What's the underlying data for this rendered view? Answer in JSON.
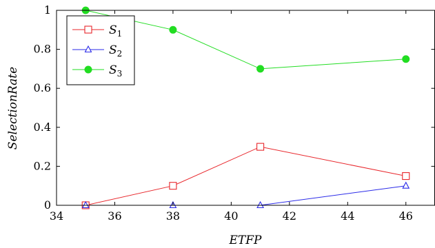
{
  "chart_data": {
    "type": "line",
    "title": "",
    "xlabel": "ETFP",
    "ylabel": "SelectionRate",
    "xlim": [
      34,
      47
    ],
    "ylim": [
      0,
      1
    ],
    "xticks": [
      34,
      36,
      38,
      40,
      42,
      44,
      46
    ],
    "yticks": [
      0,
      0.2,
      0.4,
      0.6,
      0.8,
      1
    ],
    "grid": false,
    "legend": "top-left",
    "series": [
      {
        "name": "S1",
        "legend_main": "S",
        "legend_sub": "1",
        "color": "#e8252a",
        "marker": "square-open",
        "x": [
          35,
          38,
          41,
          46
        ],
        "y": [
          0,
          0.1,
          0.3,
          0.15
        ]
      },
      {
        "name": "S2",
        "legend_main": "S",
        "legend_sub": "2",
        "color": "#2a2ae8",
        "marker": "triangle-open",
        "x": [
          35,
          38,
          41,
          46
        ],
        "y": [
          0,
          0,
          0,
          0.1
        ]
      },
      {
        "name": "S3",
        "legend_main": "S",
        "legend_sub": "3",
        "color": "#22dd22",
        "marker": "circle-filled",
        "x": [
          35,
          38,
          41,
          46
        ],
        "y": [
          1,
          0.9,
          0.7,
          0.75
        ]
      }
    ]
  }
}
